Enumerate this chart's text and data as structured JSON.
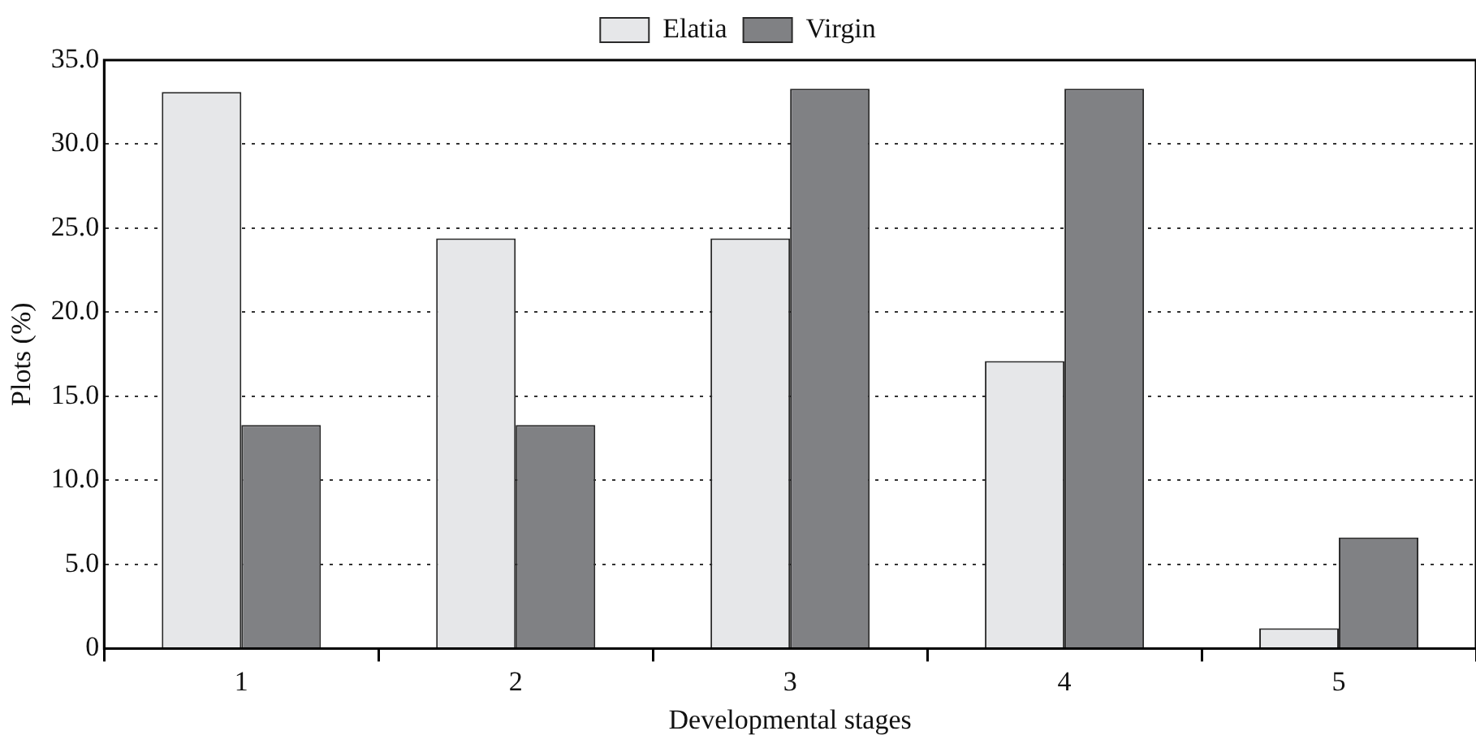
{
  "chart_data": {
    "type": "bar",
    "xlabel": "Developmental stages",
    "ylabel": "Plots (%)",
    "categories": [
      "1",
      "2",
      "3",
      "4",
      "5"
    ],
    "series": [
      {
        "name": "Elatia",
        "color": "#e6e7e9",
        "values": [
          33.1,
          24.4,
          24.4,
          17.1,
          1.2
        ]
      },
      {
        "name": "Virgin",
        "color": "#808184",
        "values": [
          13.3,
          13.3,
          33.3,
          33.3,
          6.6
        ]
      }
    ],
    "ylim": [
      0,
      35
    ],
    "yticks": [
      {
        "value": 0,
        "label": "0"
      },
      {
        "value": 5,
        "label": "5.0"
      },
      {
        "value": 10,
        "label": "10.0"
      },
      {
        "value": 15,
        "label": "15.0"
      },
      {
        "value": 20,
        "label": "20.0"
      },
      {
        "value": 25,
        "label": "25.0"
      },
      {
        "value": 30,
        "label": "30.0"
      },
      {
        "value": 35,
        "label": "35.0"
      }
    ],
    "grid": "y",
    "legend": "top"
  }
}
